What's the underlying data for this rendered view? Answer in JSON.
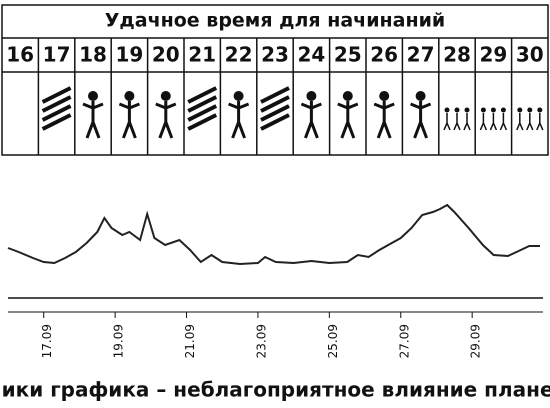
{
  "header": {
    "title": "Удачное время для начинаний",
    "days": [
      "16",
      "17",
      "18",
      "19",
      "20",
      "21",
      "22",
      "23",
      "24",
      "25",
      "26",
      "27",
      "28",
      "29",
      "30"
    ]
  },
  "chart_data": {
    "type": "line",
    "x": [
      16,
      16.3,
      16.7,
      17,
      17.3,
      17.6,
      17.9,
      18.2,
      18.5,
      18.7,
      18.9,
      19.2,
      19.4,
      19.7,
      19.9,
      20.1,
      20.4,
      20.8,
      21.1,
      21.4,
      21.7,
      22,
      22.5,
      23,
      23.2,
      23.5,
      24,
      24.5,
      25,
      25.5,
      25.8,
      26.1,
      26.4,
      26.7,
      27,
      27.3,
      27.6,
      27.9,
      28.1,
      28.3,
      28.5,
      28.9,
      29.3,
      29.6,
      30,
      30.3,
      30.6,
      30.9
    ],
    "values": [
      42,
      38,
      32,
      28,
      27,
      32,
      38,
      47,
      58,
      72,
      62,
      55,
      58,
      50,
      76,
      52,
      45,
      50,
      40,
      28,
      35,
      28,
      26,
      27,
      33,
      28,
      27,
      29,
      27,
      28,
      35,
      33,
      40,
      46,
      52,
      62,
      75,
      78,
      81,
      85,
      78,
      62,
      45,
      35,
      34,
      39,
      44,
      44
    ],
    "color": "#222",
    "xlim": [
      16,
      30.9
    ],
    "ylim": [
      0,
      100
    ],
    "xticks": [
      {
        "value": 17,
        "label": "17.09"
      },
      {
        "value": 19,
        "label": "19.09"
      },
      {
        "value": 21,
        "label": "21.09"
      },
      {
        "value": 23,
        "label": "23.09"
      },
      {
        "value": 25,
        "label": "25.09"
      },
      {
        "value": 27,
        "label": "27.09"
      },
      {
        "value": 29,
        "label": "29.09"
      }
    ],
    "caption": "Пики графика – неблагоприятное влияние планет"
  }
}
